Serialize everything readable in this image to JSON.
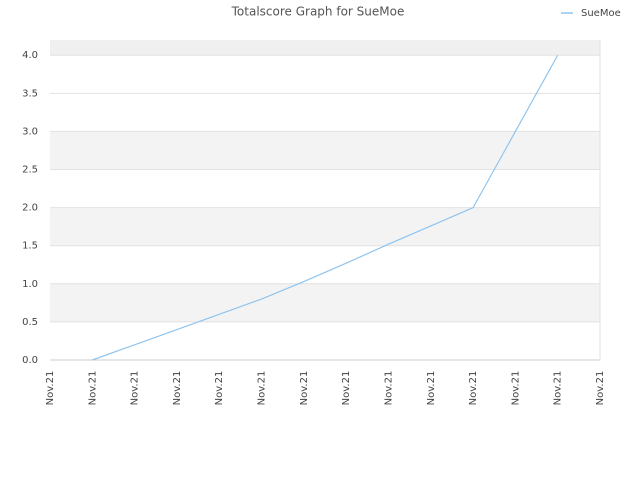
{
  "chart_data": {
    "type": "line",
    "title": "Totalscore Graph for SueMoe",
    "categories": [
      "Nov.21",
      "Nov.21",
      "Nov.21",
      "Nov.21",
      "Nov.21",
      "Nov.21",
      "Nov.21",
      "Nov.21",
      "Nov.21",
      "Nov.21",
      "Nov.21",
      "Nov.21",
      "Nov.21",
      "Nov.21"
    ],
    "series": [
      {
        "name": "SueMoe",
        "color": "#90c4ee",
        "values": [
          null,
          0,
          0.2,
          0.4,
          0.6,
          0.8,
          1.03,
          1.27,
          1.52,
          1.76,
          2.0,
          3.0,
          4.0,
          null
        ]
      }
    ],
    "ylim": [
      0,
      4.2
    ],
    "yticks": [
      {
        "value": 0,
        "label": "0.0"
      },
      {
        "value": 0.5,
        "label": "0.5"
      },
      {
        "value": 1,
        "label": "1.0"
      },
      {
        "value": 1.5,
        "label": "1.5"
      },
      {
        "value": 2,
        "label": "2.0"
      },
      {
        "value": 2.5,
        "label": "2.5"
      },
      {
        "value": 3,
        "label": "3.0"
      },
      {
        "value": 3.5,
        "label": "3.5"
      },
      {
        "value": 4,
        "label": "4.0"
      }
    ],
    "grid": true,
    "legend": "top-right"
  }
}
